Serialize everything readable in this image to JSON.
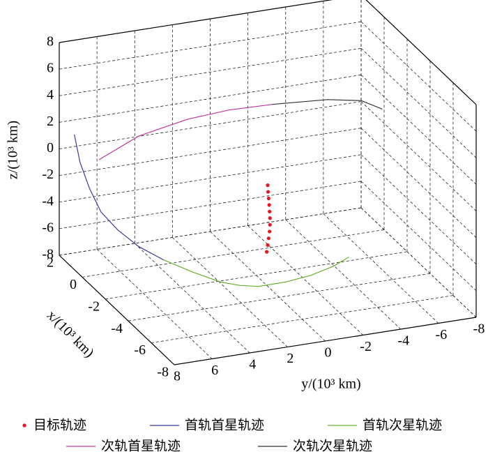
{
  "chart_data": {
    "type": "line3d",
    "xlabel": "x/(10³ km)",
    "ylabel": "y/(10³ km)",
    "zlabel": "z/(10³ km)",
    "xlim": [
      -8,
      2
    ],
    "ylim": [
      -8,
      8
    ],
    "zlim": [
      -8,
      8
    ],
    "xticks": [
      2,
      0,
      -2,
      -4,
      -6,
      -8
    ],
    "yticks": [
      8,
      6,
      4,
      2,
      0,
      -2,
      -4,
      -6,
      -8
    ],
    "zticks": [
      -8,
      -6,
      -4,
      -2,
      0,
      2,
      4,
      6,
      8
    ],
    "grid": true,
    "series": [
      {
        "name": "目标轨迹",
        "color": "#e8141e",
        "marker": true,
        "x": [
          -3,
          -3,
          -3,
          -3,
          -3,
          -3,
          -3,
          -3,
          -3,
          -3,
          -3
        ],
        "y": [
          0.05,
          0.0,
          -0.05,
          -0.1,
          -0.12,
          -0.12,
          -0.1,
          -0.08,
          -0.05,
          -0.02,
          0.0
        ],
        "z": [
          -5.4,
          -4.9,
          -4.4,
          -3.9,
          -3.4,
          -2.9,
          -2.4,
          -1.9,
          -1.4,
          -0.9,
          -0.4
        ]
      },
      {
        "name": "首轨首星轨迹",
        "color": "#3a3aa0",
        "x": [
          2,
          1.5,
          1,
          0.5,
          0,
          -0.5,
          -1
        ],
        "y": [
          7.2,
          7.2,
          7.0,
          6.7,
          6.1,
          5.3,
          4.3
        ],
        "z": [
          0.9,
          -0.8,
          -2.4,
          -3.8,
          -4.9,
          -5.9,
          -6.7
        ]
      },
      {
        "name": "首轨次星轨迹",
        "color": "#66b030",
        "x": [
          -1,
          -1.6,
          -2.2,
          -2.6,
          -3,
          -3.3,
          -3.5,
          -3.8,
          -4
        ],
        "y": [
          4.3,
          3.1,
          2.0,
          1.2,
          0.5,
          -0.8,
          -2.0,
          -3.0,
          -3.7
        ],
        "z": [
          -6.7,
          -7.4,
          -7.9,
          -8.0,
          -7.9,
          -7.6,
          -7.2,
          -6.5,
          -5.8
        ]
      },
      {
        "name": "次轨首星轨迹",
        "color": "#c0369a",
        "x": [
          1.5,
          1.5,
          1.5,
          1.5,
          1.2
        ],
        "y": [
          6.2,
          4.1,
          1.5,
          -0.7,
          -2.8
        ],
        "z": [
          -0.8,
          0.5,
          1.2,
          1.4,
          1.6
        ]
      },
      {
        "name": "次轨次星轨迹",
        "color": "#333333",
        "x": [
          1.2,
          1,
          0.5,
          0
        ],
        "y": [
          -2.8,
          -5.6,
          -7.1,
          -7.9
        ],
        "z": [
          1.6,
          1.5,
          1.5,
          1.1
        ]
      }
    ]
  }
}
